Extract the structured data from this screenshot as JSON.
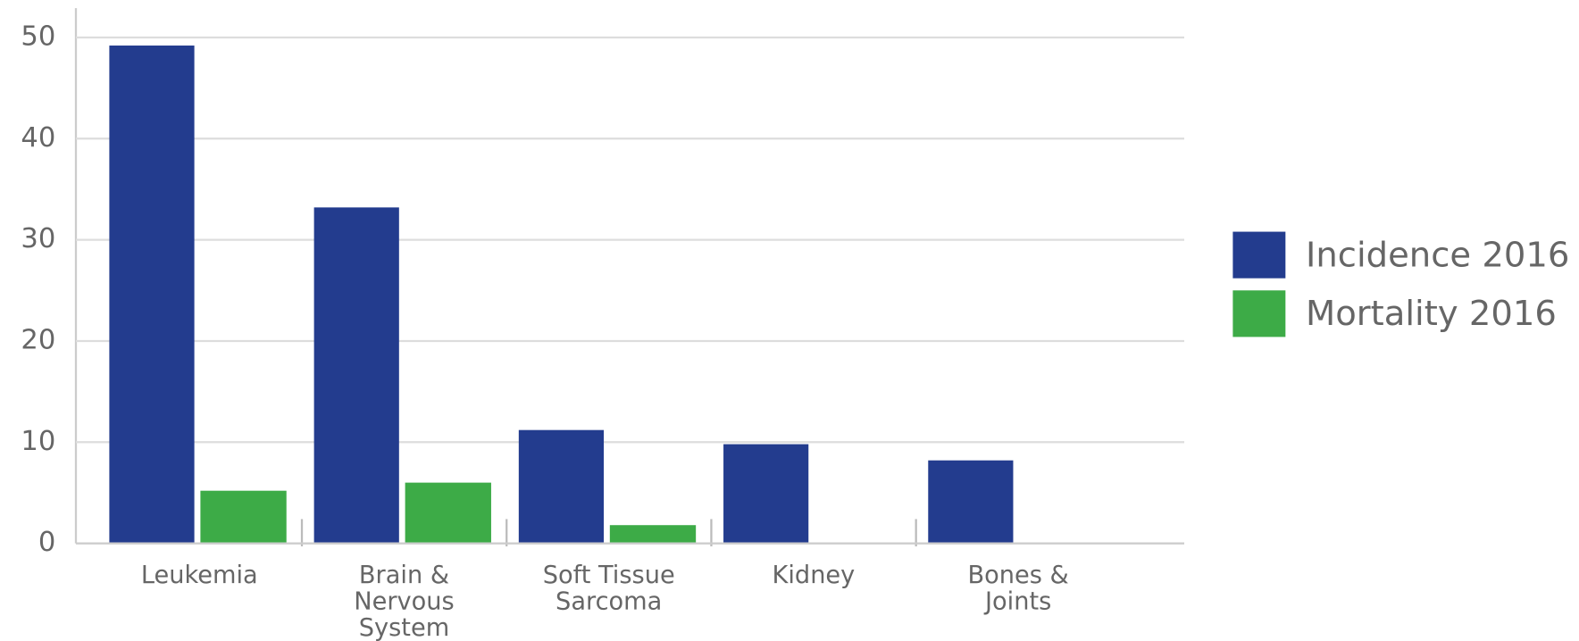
{
  "chart_data": {
    "type": "bar",
    "categories": [
      "Leukemia",
      "Brain & Nervous System",
      "Soft Tissue Sarcoma",
      "Kidney",
      "Bones & Joints"
    ],
    "series": [
      {
        "name": "Incidence 2016",
        "color": "#233c8e",
        "values": [
          49.2,
          33.2,
          11.2,
          9.8,
          8.2
        ]
      },
      {
        "name": "Mortality 2016",
        "color": "#3dab47",
        "values": [
          5.2,
          6.0,
          1.8,
          0,
          0
        ]
      }
    ],
    "ylim": [
      0,
      50
    ],
    "yticks": [
      0,
      10,
      20,
      30,
      40,
      50
    ],
    "grid": true,
    "legend": "right"
  }
}
